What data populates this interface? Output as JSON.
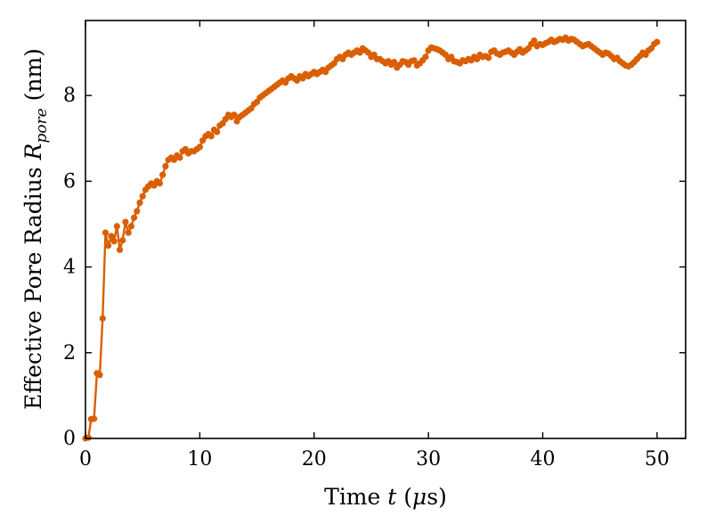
{
  "chart_data": {
    "type": "line",
    "xlabel": "Time t (μs)",
    "ylabel": "Effective Pore Radius R_pore (nm)",
    "xlabel_parts": {
      "prefix": "Time ",
      "var": "t",
      "unit_open": " (",
      "unit_mu": "μ",
      "unit_rest": "s)"
    },
    "ylabel_parts": {
      "prefix": "Effective Pore Radius ",
      "var": "R",
      "sub": "pore",
      "unit": " (nm)"
    },
    "xlim": [
      0,
      52.5
    ],
    "ylim": [
      0,
      9.75
    ],
    "xticks": [
      0,
      10,
      20,
      30,
      40,
      50
    ],
    "yticks": [
      0,
      2,
      4,
      6,
      8
    ],
    "xtick_labels": [
      "0",
      "10",
      "20",
      "30",
      "40",
      "50"
    ],
    "ytick_labels": [
      "0",
      "2",
      "4",
      "6",
      "8"
    ],
    "grid": false,
    "ticks_direction": "in",
    "series": [
      {
        "color": "#d95f02",
        "marker": "circle",
        "x": [
          0.0,
          0.25,
          0.5,
          0.75,
          1.0,
          1.25,
          1.5,
          1.75,
          2.0,
          2.25,
          2.5,
          2.75,
          3.0,
          3.25,
          3.5,
          3.75,
          4.0,
          4.25,
          4.5,
          4.75,
          5.0,
          5.25,
          5.5,
          5.75,
          6.0,
          6.25,
          6.5,
          6.75,
          7.0,
          7.25,
          7.5,
          7.75,
          8.0,
          8.25,
          8.5,
          8.75,
          9.0,
          9.25,
          9.5,
          9.75,
          10.0,
          10.25,
          10.5,
          10.75,
          11.0,
          11.25,
          11.5,
          11.75,
          12.0,
          12.25,
          12.5,
          12.75,
          13.0,
          13.25,
          13.5,
          13.75,
          14.0,
          14.25,
          14.5,
          14.75,
          15.0,
          15.25,
          15.5,
          15.75,
          16.0,
          16.25,
          16.5,
          16.75,
          17.0,
          17.25,
          17.5,
          17.75,
          18.0,
          18.25,
          18.5,
          18.75,
          19.0,
          19.25,
          19.5,
          19.75,
          20.0,
          20.25,
          20.5,
          20.75,
          21.0,
          21.25,
          21.5,
          21.75,
          22.0,
          22.25,
          22.5,
          22.75,
          23.0,
          23.25,
          23.5,
          23.75,
          24.0,
          24.25,
          24.5,
          24.75,
          25.0,
          25.25,
          25.5,
          25.75,
          26.0,
          26.25,
          26.5,
          26.75,
          27.0,
          27.25,
          27.5,
          27.75,
          28.0,
          28.25,
          28.5,
          28.75,
          29.0,
          29.25,
          29.5,
          29.75,
          30.0,
          30.25,
          30.5,
          30.75,
          31.0,
          31.25,
          31.5,
          31.75,
          32.0,
          32.25,
          32.5,
          32.75,
          33.0,
          33.25,
          33.5,
          33.75,
          34.0,
          34.25,
          34.5,
          34.75,
          35.0,
          35.25,
          35.5,
          35.75,
          36.0,
          36.25,
          36.5,
          36.75,
          37.0,
          37.25,
          37.5,
          37.75,
          38.0,
          38.25,
          38.5,
          38.75,
          39.0,
          39.25,
          39.5,
          39.75,
          40.0,
          40.25,
          40.5,
          40.75,
          41.0,
          41.25,
          41.5,
          41.75,
          42.0,
          42.25,
          42.5,
          42.75,
          43.0,
          43.25,
          43.5,
          43.75,
          44.0,
          44.25,
          44.5,
          44.75,
          45.0,
          45.25,
          45.5,
          45.75,
          46.0,
          46.25,
          46.5,
          46.75,
          47.0,
          47.25,
          47.5,
          47.75,
          48.0,
          48.25,
          48.5,
          48.75,
          49.0,
          49.25,
          49.5,
          49.75,
          50.0
        ],
        "y": [
          0.0,
          0.02,
          0.45,
          0.46,
          1.52,
          1.48,
          2.8,
          4.8,
          4.5,
          4.72,
          4.6,
          4.95,
          4.4,
          4.62,
          5.05,
          4.8,
          4.95,
          5.15,
          5.3,
          5.5,
          5.65,
          5.8,
          5.88,
          5.95,
          5.9,
          6.0,
          5.95,
          6.15,
          6.35,
          6.5,
          6.55,
          6.5,
          6.6,
          6.55,
          6.7,
          6.75,
          6.65,
          6.7,
          6.7,
          6.75,
          6.8,
          6.95,
          7.05,
          7.1,
          7.05,
          7.2,
          7.15,
          7.3,
          7.35,
          7.45,
          7.55,
          7.5,
          7.55,
          7.4,
          7.5,
          7.55,
          7.6,
          7.65,
          7.7,
          7.8,
          7.85,
          7.95,
          8.0,
          8.05,
          8.1,
          8.15,
          8.2,
          8.25,
          8.3,
          8.35,
          8.3,
          8.4,
          8.45,
          8.4,
          8.35,
          8.45,
          8.4,
          8.5,
          8.45,
          8.5,
          8.55,
          8.5,
          8.55,
          8.6,
          8.55,
          8.65,
          8.7,
          8.75,
          8.85,
          8.9,
          8.85,
          8.95,
          9.0,
          8.95,
          9.0,
          9.05,
          9.0,
          9.1,
          9.05,
          9.0,
          8.9,
          8.95,
          8.85,
          8.85,
          8.8,
          8.75,
          8.8,
          8.72,
          8.78,
          8.65,
          8.72,
          8.8,
          8.78,
          8.72,
          8.8,
          8.82,
          8.7,
          8.75,
          8.82,
          8.9,
          9.05,
          9.12,
          9.1,
          9.08,
          9.05,
          9.0,
          8.95,
          8.85,
          8.9,
          8.8,
          8.78,
          8.75,
          8.82,
          8.8,
          8.85,
          8.82,
          8.9,
          8.85,
          8.95,
          8.9,
          8.92,
          8.88,
          9.02,
          9.05,
          8.98,
          8.95,
          9.0,
          9.02,
          9.05,
          9.0,
          8.95,
          9.02,
          9.08,
          9.0,
          9.05,
          9.1,
          9.2,
          9.28,
          9.15,
          9.2,
          9.18,
          9.22,
          9.25,
          9.3,
          9.25,
          9.28,
          9.32,
          9.3,
          9.35,
          9.28,
          9.32,
          9.3,
          9.25,
          9.2,
          9.15,
          9.18,
          9.2,
          9.15,
          9.1,
          9.05,
          9.0,
          8.95,
          9.0,
          8.98,
          8.92,
          8.85,
          8.88,
          8.8,
          8.75,
          8.7,
          8.68,
          8.72,
          8.78,
          8.85,
          8.92,
          9.0,
          8.95,
          9.05,
          9.1,
          9.2,
          9.25
        ]
      }
    ]
  }
}
